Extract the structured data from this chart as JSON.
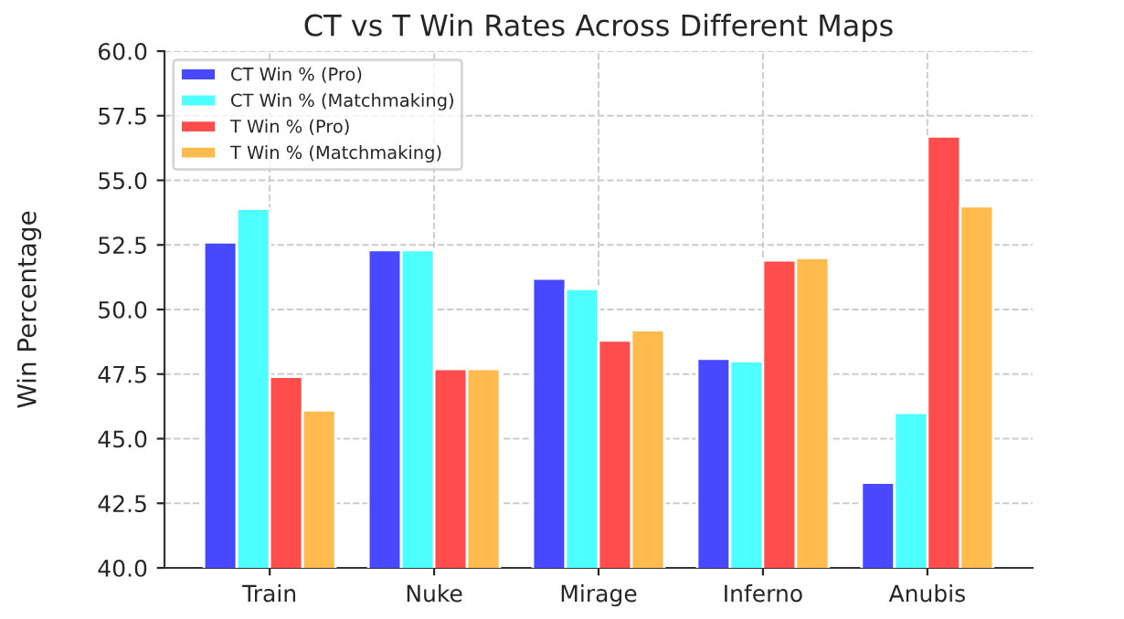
{
  "chart_data": {
    "type": "bar",
    "title": "CT vs T Win Rates Across Different Maps",
    "ylabel": "Win Percentage",
    "categories": [
      "Train",
      "Nuke",
      "Mirage",
      "Inferno",
      "Anubis"
    ],
    "series": [
      {
        "name": "CT Win % (Pro)",
        "color": "#4848ff",
        "values": [
          52.6,
          52.3,
          51.2,
          48.1,
          43.3
        ]
      },
      {
        "name": "CT Win % (Matchmaking)",
        "color": "#4dffff",
        "values": [
          53.9,
          52.3,
          50.8,
          48.0,
          46.0
        ]
      },
      {
        "name": "T Win % (Pro)",
        "color": "#ff4d4d",
        "values": [
          47.4,
          47.7,
          48.8,
          51.9,
          56.7
        ]
      },
      {
        "name": "T Win % (Matchmaking)",
        "color": "#ffbb4d",
        "values": [
          46.1,
          47.7,
          49.2,
          52.0,
          54.0
        ]
      }
    ],
    "ylim": [
      40.0,
      60.0
    ],
    "yticks": [
      {
        "value": 40,
        "label": "40.0"
      },
      {
        "value": 42.5,
        "label": "42.5"
      },
      {
        "value": 45,
        "label": "45.0"
      },
      {
        "value": 47.5,
        "label": "47.5"
      },
      {
        "value": 50,
        "label": "50.0"
      },
      {
        "value": 52.5,
        "label": "52.5"
      },
      {
        "value": 55,
        "label": "55.0"
      },
      {
        "value": 57.5,
        "label": "57.5"
      },
      {
        "value": 60,
        "label": "60.0"
      }
    ],
    "grid": true,
    "legend": "top left"
  }
}
